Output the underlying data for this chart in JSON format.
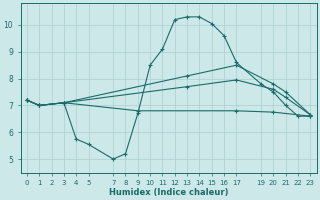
{
  "xlabel": "Humidex (Indice chaleur)",
  "bg_color": "#cce8e8",
  "line_color": "#1a6b6b",
  "grid_color": "#aacfcf",
  "xticks": [
    0,
    1,
    2,
    3,
    4,
    5,
    7,
    8,
    9,
    10,
    11,
    12,
    13,
    14,
    15,
    16,
    17,
    19,
    20,
    21,
    22,
    23
  ],
  "xlim": [
    -0.5,
    23.5
  ],
  "ylim": [
    4.5,
    10.8
  ],
  "yticks": [
    5,
    6,
    7,
    8,
    9,
    10
  ],
  "line1_x": [
    0,
    1,
    3,
    4,
    5,
    7,
    8,
    9,
    10,
    11,
    12,
    13,
    14,
    15,
    16,
    17,
    19,
    20,
    21,
    22,
    23
  ],
  "line1_y": [
    7.2,
    7.0,
    7.1,
    5.75,
    5.55,
    5.0,
    5.2,
    6.7,
    8.5,
    9.1,
    10.2,
    10.3,
    10.3,
    10.05,
    9.6,
    8.6,
    7.8,
    7.5,
    7.0,
    6.6,
    6.6
  ],
  "line2_x": [
    0,
    1,
    3,
    13,
    17,
    20,
    21,
    23
  ],
  "line2_y": [
    7.2,
    7.0,
    7.1,
    8.1,
    8.5,
    7.8,
    7.5,
    6.65
  ],
  "line3_x": [
    0,
    1,
    3,
    13,
    17,
    20,
    21,
    23
  ],
  "line3_y": [
    7.2,
    7.0,
    7.1,
    7.7,
    7.95,
    7.6,
    7.3,
    6.65
  ],
  "line4_x": [
    0,
    1,
    3,
    9,
    17,
    20,
    23
  ],
  "line4_y": [
    7.2,
    7.0,
    7.1,
    6.8,
    6.8,
    6.75,
    6.6
  ]
}
